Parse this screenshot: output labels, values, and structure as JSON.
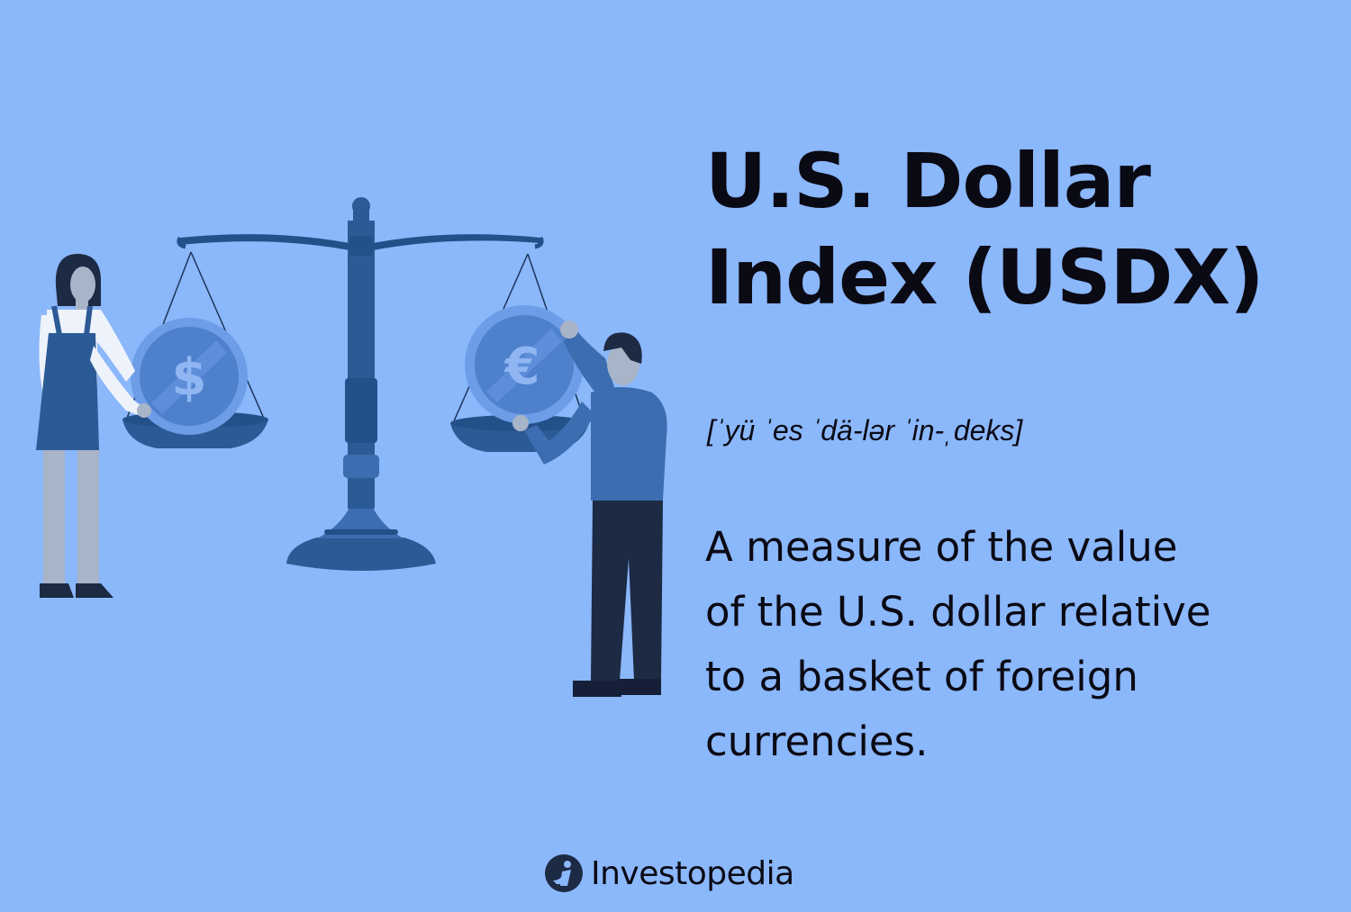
{
  "title_lines": [
    "U.S. Dollar",
    "Index (USDX)"
  ],
  "pronunciation": "[ˈyü ˈes ˈdä-lər ˈin-ˌdeks]",
  "definition_lines": [
    "A measure of the value",
    "of the U.S. dollar relative",
    "to a basket of foreign",
    "currencies."
  ],
  "illustration": {
    "left_coin_symbol": "$",
    "right_coin_symbol": "€"
  },
  "brand": {
    "name": "Investopedia",
    "icon": "investopedia-logo-icon"
  },
  "colors": {
    "background": "#8bb7fb",
    "scale_dark": "#2c5a96",
    "scale_mid": "#3c6db0",
    "coin": "#5d8fdb",
    "text": "#0a0a14"
  }
}
